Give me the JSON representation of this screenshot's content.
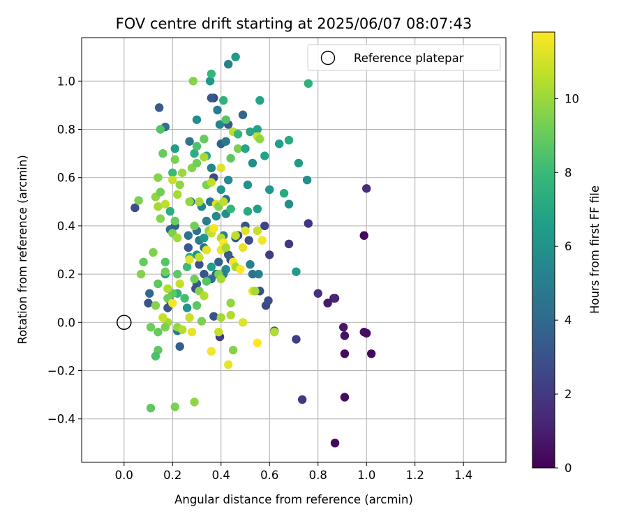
{
  "chart_data": {
    "type": "scatter",
    "title": "FOV centre drift starting at 2025/06/07 08:07:43",
    "xlabel": "Angular distance from reference (arcmin)",
    "ylabel": "Rotation from reference (arcmin)",
    "xlim": [
      -0.175,
      1.575
    ],
    "ylim": [
      -0.58,
      1.18
    ],
    "xticks": [
      0.0,
      0.2,
      0.4,
      0.6,
      0.8,
      1.0,
      1.2,
      1.4
    ],
    "xtick_labels": [
      "0.0",
      "0.2",
      "0.4",
      "0.6",
      "0.8",
      "1.0",
      "1.2",
      "1.4"
    ],
    "yticks": [
      -0.4,
      -0.2,
      0.0,
      0.2,
      0.4,
      0.6,
      0.8,
      1.0
    ],
    "ytick_labels": [
      "−0.4",
      "−0.2",
      "0.0",
      "0.2",
      "0.4",
      "0.6",
      "0.8",
      "1.0"
    ],
    "grid": true,
    "legend": {
      "placement": "upper right",
      "entries": [
        "Reference platepar"
      ]
    },
    "reference": {
      "x": 0.0,
      "y": 0.0,
      "label": "Reference platepar"
    },
    "colorbar": {
      "label": "Hours from first FF file",
      "colormap": "viridis",
      "range": [
        0,
        11.8
      ],
      "ticks": [
        0,
        2,
        4,
        6,
        8,
        10
      ],
      "tick_labels": [
        "0",
        "2",
        "4",
        "6",
        "8",
        "10"
      ],
      "stops": [
        "#440154",
        "#482878",
        "#3e4989",
        "#31688e",
        "#26828e",
        "#1f9e89",
        "#35b779",
        "#6ece58",
        "#b5de2b",
        "#fde725"
      ]
    },
    "points": [
      {
        "x": 0.99,
        "y": 0.36,
        "h": 0.2
      },
      {
        "x": 0.87,
        "y": -0.5,
        "h": 0.2
      },
      {
        "x": 0.91,
        "y": -0.31,
        "h": 0.4
      },
      {
        "x": 0.91,
        "y": -0.13,
        "h": 0.3
      },
      {
        "x": 1.02,
        "y": -0.13,
        "h": 0.3
      },
      {
        "x": 0.99,
        "y": -0.04,
        "h": 0.5
      },
      {
        "x": 1.0,
        "y": -0.045,
        "h": 0.4
      },
      {
        "x": 0.91,
        "y": -0.055,
        "h": 0.6
      },
      {
        "x": 0.905,
        "y": -0.02,
        "h": 0.7
      },
      {
        "x": 0.84,
        "y": 0.08,
        "h": 0.8
      },
      {
        "x": 0.865,
        "y": 0.1,
        "h": 1.0
      },
      {
        "x": 0.87,
        "y": 0.1,
        "h": 1.2
      },
      {
        "x": 1.0,
        "y": 0.555,
        "h": 1.5
      },
      {
        "x": 0.8,
        "y": 0.12,
        "h": 1.6
      },
      {
        "x": 0.735,
        "y": -0.32,
        "h": 2.0
      },
      {
        "x": 0.71,
        "y": -0.07,
        "h": 2.2
      },
      {
        "x": 0.76,
        "y": 0.41,
        "h": 1.8
      },
      {
        "x": 0.68,
        "y": 0.325,
        "h": 2.0
      },
      {
        "x": 0.6,
        "y": 0.28,
        "h": 2.2
      },
      {
        "x": 0.58,
        "y": 0.4,
        "h": 2.4
      },
      {
        "x": 0.585,
        "y": 0.07,
        "h": 2.6
      },
      {
        "x": 0.595,
        "y": 0.09,
        "h": 2.8
      },
      {
        "x": 0.62,
        "y": -0.035,
        "h": 3.2
      },
      {
        "x": 0.56,
        "y": 0.13,
        "h": 3.0
      },
      {
        "x": 0.515,
        "y": 0.34,
        "h": 2.8
      },
      {
        "x": 0.5,
        "y": 0.4,
        "h": 3.0
      },
      {
        "x": 0.47,
        "y": 0.36,
        "h": 2.6
      },
      {
        "x": 0.44,
        "y": 0.26,
        "h": 2.4
      },
      {
        "x": 0.46,
        "y": 0.35,
        "h": 3.2
      },
      {
        "x": 0.43,
        "y": 0.28,
        "h": 3.4
      },
      {
        "x": 0.39,
        "y": 0.25,
        "h": 3.6
      },
      {
        "x": 0.38,
        "y": 0.2,
        "h": 3.8
      },
      {
        "x": 0.395,
        "y": -0.06,
        "h": 2.2
      },
      {
        "x": 0.37,
        "y": 0.025,
        "h": 3.0
      },
      {
        "x": 0.36,
        "y": 0.18,
        "h": 4.2
      },
      {
        "x": 0.33,
        "y": 0.2,
        "h": 3.2
      },
      {
        "x": 0.31,
        "y": 0.24,
        "h": 3.0
      },
      {
        "x": 0.3,
        "y": 0.16,
        "h": 3.5
      },
      {
        "x": 0.295,
        "y": 0.14,
        "h": 2.8
      },
      {
        "x": 0.23,
        "y": -0.1,
        "h": 3.6
      },
      {
        "x": 0.22,
        "y": -0.035,
        "h": 4.6
      },
      {
        "x": 0.19,
        "y": 0.09,
        "h": 2.8
      },
      {
        "x": 0.18,
        "y": 0.06,
        "h": 3.2
      },
      {
        "x": 0.1,
        "y": 0.08,
        "h": 3.0
      },
      {
        "x": 0.105,
        "y": 0.12,
        "h": 4.0
      },
      {
        "x": 0.045,
        "y": 0.475,
        "h": 2.8
      },
      {
        "x": 0.19,
        "y": 0.385,
        "h": 4.0
      },
      {
        "x": 0.21,
        "y": 0.4,
        "h": 3.6
      },
      {
        "x": 0.265,
        "y": 0.31,
        "h": 3.4
      },
      {
        "x": 0.265,
        "y": 0.36,
        "h": 4.4
      },
      {
        "x": 0.275,
        "y": 0.5,
        "h": 3.6
      },
      {
        "x": 0.3,
        "y": 0.38,
        "h": 4.4
      },
      {
        "x": 0.31,
        "y": 0.34,
        "h": 4.8
      },
      {
        "x": 0.32,
        "y": 0.48,
        "h": 5.4
      },
      {
        "x": 0.33,
        "y": 0.31,
        "h": 4.2
      },
      {
        "x": 0.34,
        "y": 0.42,
        "h": 5.0
      },
      {
        "x": 0.355,
        "y": 0.5,
        "h": 4.6
      },
      {
        "x": 0.36,
        "y": 0.64,
        "h": 5.4
      },
      {
        "x": 0.37,
        "y": 0.6,
        "h": 2.6
      },
      {
        "x": 0.38,
        "y": 0.44,
        "h": 5.6
      },
      {
        "x": 0.4,
        "y": 0.55,
        "h": 6.2
      },
      {
        "x": 0.41,
        "y": 0.36,
        "h": 5.2
      },
      {
        "x": 0.42,
        "y": 0.45,
        "h": 5.8
      },
      {
        "x": 0.42,
        "y": 0.51,
        "h": 4.2
      },
      {
        "x": 0.43,
        "y": 0.59,
        "h": 5.6
      },
      {
        "x": 0.4,
        "y": 0.74,
        "h": 3.6
      },
      {
        "x": 0.42,
        "y": 0.75,
        "h": 4.8
      },
      {
        "x": 0.43,
        "y": 0.82,
        "h": 3.4
      },
      {
        "x": 0.395,
        "y": 0.82,
        "h": 5.4
      },
      {
        "x": 0.385,
        "y": 0.88,
        "h": 5.0
      },
      {
        "x": 0.37,
        "y": 0.93,
        "h": 2.6
      },
      {
        "x": 0.36,
        "y": 0.93,
        "h": 3.2
      },
      {
        "x": 0.355,
        "y": 1.0,
        "h": 6.2
      },
      {
        "x": 0.36,
        "y": 1.03,
        "h": 7.8
      },
      {
        "x": 0.43,
        "y": 1.07,
        "h": 5.2
      },
      {
        "x": 0.46,
        "y": 1.1,
        "h": 6.4
      },
      {
        "x": 0.49,
        "y": 0.86,
        "h": 3.8
      },
      {
        "x": 0.56,
        "y": 0.92,
        "h": 6.8
      },
      {
        "x": 0.76,
        "y": 0.99,
        "h": 7.6
      },
      {
        "x": 0.145,
        "y": 0.89,
        "h": 3.4
      },
      {
        "x": 0.17,
        "y": 0.81,
        "h": 4.4
      },
      {
        "x": 0.3,
        "y": 0.84,
        "h": 5.8
      },
      {
        "x": 0.41,
        "y": 0.92,
        "h": 7.6
      },
      {
        "x": 0.52,
        "y": 0.79,
        "h": 7.0
      },
      {
        "x": 0.55,
        "y": 0.8,
        "h": 6.8
      },
      {
        "x": 0.64,
        "y": 0.74,
        "h": 6.6
      },
      {
        "x": 0.68,
        "y": 0.755,
        "h": 7.2
      },
      {
        "x": 0.58,
        "y": 0.69,
        "h": 6.8
      },
      {
        "x": 0.53,
        "y": 0.66,
        "h": 5.8
      },
      {
        "x": 0.72,
        "y": 0.66,
        "h": 6.4
      },
      {
        "x": 0.755,
        "y": 0.59,
        "h": 5.8
      },
      {
        "x": 0.6,
        "y": 0.55,
        "h": 6.2
      },
      {
        "x": 0.66,
        "y": 0.535,
        "h": 7.2
      },
      {
        "x": 0.68,
        "y": 0.49,
        "h": 5.8
      },
      {
        "x": 0.55,
        "y": 0.47,
        "h": 6.6
      },
      {
        "x": 0.51,
        "y": 0.46,
        "h": 7.2
      },
      {
        "x": 0.51,
        "y": 0.57,
        "h": 6.0
      },
      {
        "x": 0.44,
        "y": 0.47,
        "h": 7.8
      },
      {
        "x": 0.71,
        "y": 0.21,
        "h": 6.4
      },
      {
        "x": 0.555,
        "y": 0.2,
        "h": 5.2
      },
      {
        "x": 0.53,
        "y": 0.2,
        "h": 4.6
      },
      {
        "x": 0.52,
        "y": 0.24,
        "h": 5.2
      },
      {
        "x": 0.42,
        "y": 0.22,
        "h": 5.6
      },
      {
        "x": 0.41,
        "y": 0.2,
        "h": 5.0
      },
      {
        "x": 0.36,
        "y": 0.23,
        "h": 6.6
      },
      {
        "x": 0.33,
        "y": 0.35,
        "h": 6.2
      },
      {
        "x": 0.3,
        "y": 0.28,
        "h": 6.0
      },
      {
        "x": 0.27,
        "y": 0.27,
        "h": 7.6
      },
      {
        "x": 0.26,
        "y": 0.23,
        "h": 8.0
      },
      {
        "x": 0.26,
        "y": 0.06,
        "h": 6.2
      },
      {
        "x": 0.25,
        "y": 0.1,
        "h": 8.2
      },
      {
        "x": 0.22,
        "y": 0.12,
        "h": 7.6
      },
      {
        "x": 0.2,
        "y": 0.12,
        "h": 8.8
      },
      {
        "x": 0.18,
        "y": 0.1,
        "h": 9.2
      },
      {
        "x": 0.17,
        "y": 0.2,
        "h": 6.8
      },
      {
        "x": 0.19,
        "y": 0.46,
        "h": 7.4
      },
      {
        "x": 0.2,
        "y": 0.62,
        "h": 8.0
      },
      {
        "x": 0.21,
        "y": 0.72,
        "h": 6.6
      },
      {
        "x": 0.27,
        "y": 0.75,
        "h": 4.6
      },
      {
        "x": 0.29,
        "y": 0.7,
        "h": 7.4
      },
      {
        "x": 0.3,
        "y": 0.73,
        "h": 8.4
      },
      {
        "x": 0.33,
        "y": 0.76,
        "h": 9.0
      },
      {
        "x": 0.34,
        "y": 0.69,
        "h": 7.0
      },
      {
        "x": 0.44,
        "y": 0.68,
        "h": 8.8
      },
      {
        "x": 0.47,
        "y": 0.72,
        "h": 9.4
      },
      {
        "x": 0.5,
        "y": 0.72,
        "h": 7.0
      },
      {
        "x": 0.45,
        "y": 0.79,
        "h": 10.6
      },
      {
        "x": 0.47,
        "y": 0.78,
        "h": 7.8
      },
      {
        "x": 0.55,
        "y": 0.77,
        "h": 10.8
      },
      {
        "x": 0.56,
        "y": 0.76,
        "h": 9.8
      },
      {
        "x": 0.4,
        "y": 0.64,
        "h": 11.2
      },
      {
        "x": 0.42,
        "y": 0.84,
        "h": 8.6
      },
      {
        "x": 0.285,
        "y": 1.0,
        "h": 9.6
      },
      {
        "x": 0.15,
        "y": 0.8,
        "h": 8.6
      },
      {
        "x": 0.16,
        "y": 0.7,
        "h": 9.0
      },
      {
        "x": 0.21,
        "y": 0.675,
        "h": 9.4
      },
      {
        "x": 0.24,
        "y": 0.62,
        "h": 10.0
      },
      {
        "x": 0.28,
        "y": 0.64,
        "h": 9.6
      },
      {
        "x": 0.3,
        "y": 0.66,
        "h": 9.2
      },
      {
        "x": 0.33,
        "y": 0.685,
        "h": 10.2
      },
      {
        "x": 0.2,
        "y": 0.59,
        "h": 10.8
      },
      {
        "x": 0.23,
        "y": 0.57,
        "h": 9.8
      },
      {
        "x": 0.14,
        "y": 0.6,
        "h": 9.6
      },
      {
        "x": 0.06,
        "y": 0.505,
        "h": 9.4
      },
      {
        "x": 0.13,
        "y": 0.52,
        "h": 9.8
      },
      {
        "x": 0.15,
        "y": 0.54,
        "h": 9.2
      },
      {
        "x": 0.14,
        "y": 0.48,
        "h": 10.2
      },
      {
        "x": 0.15,
        "y": 0.43,
        "h": 9.6
      },
      {
        "x": 0.17,
        "y": 0.49,
        "h": 10.6
      },
      {
        "x": 0.22,
        "y": 0.53,
        "h": 10.2
      },
      {
        "x": 0.27,
        "y": 0.5,
        "h": 9.8
      },
      {
        "x": 0.31,
        "y": 0.5,
        "h": 10.2
      },
      {
        "x": 0.34,
        "y": 0.57,
        "h": 9.4
      },
      {
        "x": 0.36,
        "y": 0.58,
        "h": 10.6
      },
      {
        "x": 0.38,
        "y": 0.49,
        "h": 11.2
      },
      {
        "x": 0.39,
        "y": 0.48,
        "h": 9.6
      },
      {
        "x": 0.41,
        "y": 0.5,
        "h": 10.6
      },
      {
        "x": 0.35,
        "y": 0.38,
        "h": 9.8
      },
      {
        "x": 0.36,
        "y": 0.37,
        "h": 10.8
      },
      {
        "x": 0.37,
        "y": 0.39,
        "h": 11.6
      },
      {
        "x": 0.4,
        "y": 0.35,
        "h": 10.4
      },
      {
        "x": 0.4,
        "y": 0.3,
        "h": 11.4
      },
      {
        "x": 0.41,
        "y": 0.33,
        "h": 11.8
      },
      {
        "x": 0.42,
        "y": 0.31,
        "h": 10.2
      },
      {
        "x": 0.34,
        "y": 0.3,
        "h": 11.2
      },
      {
        "x": 0.31,
        "y": 0.27,
        "h": 10.8
      },
      {
        "x": 0.29,
        "y": 0.4,
        "h": 9.2
      },
      {
        "x": 0.2,
        "y": 0.37,
        "h": 9.4
      },
      {
        "x": 0.21,
        "y": 0.42,
        "h": 9.0
      },
      {
        "x": 0.22,
        "y": 0.35,
        "h": 10.2
      },
      {
        "x": 0.12,
        "y": 0.29,
        "h": 9.4
      },
      {
        "x": 0.08,
        "y": 0.25,
        "h": 9.0
      },
      {
        "x": 0.07,
        "y": 0.2,
        "h": 9.6
      },
      {
        "x": 0.17,
        "y": 0.25,
        "h": 8.6
      },
      {
        "x": 0.17,
        "y": 0.21,
        "h": 9.2
      },
      {
        "x": 0.14,
        "y": 0.16,
        "h": 8.8
      },
      {
        "x": 0.18,
        "y": 0.14,
        "h": 10.4
      },
      {
        "x": 0.23,
        "y": 0.16,
        "h": 10.8
      },
      {
        "x": 0.22,
        "y": 0.2,
        "h": 8.8
      },
      {
        "x": 0.27,
        "y": 0.26,
        "h": 11.4
      },
      {
        "x": 0.29,
        "y": 0.18,
        "h": 9.2
      },
      {
        "x": 0.31,
        "y": 0.13,
        "h": 9.6
      },
      {
        "x": 0.33,
        "y": 0.11,
        "h": 10.4
      },
      {
        "x": 0.34,
        "y": 0.17,
        "h": 8.6
      },
      {
        "x": 0.39,
        "y": 0.2,
        "h": 9.4
      },
      {
        "x": 0.4,
        "y": 0.18,
        "h": 10.2
      },
      {
        "x": 0.45,
        "y": 0.25,
        "h": 11.6
      },
      {
        "x": 0.46,
        "y": 0.23,
        "h": 10.2
      },
      {
        "x": 0.48,
        "y": 0.22,
        "h": 11.8
      },
      {
        "x": 0.49,
        "y": 0.31,
        "h": 11.4
      },
      {
        "x": 0.46,
        "y": 0.36,
        "h": 10.6
      },
      {
        "x": 0.5,
        "y": 0.38,
        "h": 11.2
      },
      {
        "x": 0.55,
        "y": 0.38,
        "h": 10.8
      },
      {
        "x": 0.57,
        "y": 0.34,
        "h": 11.6
      },
      {
        "x": 0.53,
        "y": 0.13,
        "h": 11.4
      },
      {
        "x": 0.54,
        "y": 0.13,
        "h": 10.2
      },
      {
        "x": 0.44,
        "y": 0.08,
        "h": 9.8
      },
      {
        "x": 0.44,
        "y": 0.03,
        "h": 10.4
      },
      {
        "x": 0.49,
        "y": 0.0,
        "h": 11.2
      },
      {
        "x": 0.55,
        "y": -0.085,
        "h": 11.8
      },
      {
        "x": 0.62,
        "y": -0.04,
        "h": 10.4
      },
      {
        "x": 0.45,
        "y": -0.115,
        "h": 9.6
      },
      {
        "x": 0.43,
        "y": -0.175,
        "h": 11.4
      },
      {
        "x": 0.39,
        "y": -0.04,
        "h": 10.8
      },
      {
        "x": 0.36,
        "y": -0.12,
        "h": 11.6
      },
      {
        "x": 0.4,
        "y": 0.02,
        "h": 10.2
      },
      {
        "x": 0.32,
        "y": 0.005,
        "h": 9.4
      },
      {
        "x": 0.3,
        "y": 0.07,
        "h": 8.8
      },
      {
        "x": 0.28,
        "y": -0.04,
        "h": 11.4
      },
      {
        "x": 0.27,
        "y": 0.02,
        "h": 10.8
      },
      {
        "x": 0.22,
        "y": -0.02,
        "h": 9.8
      },
      {
        "x": 0.2,
        "y": 0.08,
        "h": 11.6
      },
      {
        "x": 0.18,
        "y": 0.0,
        "h": 10.2
      },
      {
        "x": 0.17,
        "y": -0.02,
        "h": 9.4
      },
      {
        "x": 0.16,
        "y": 0.02,
        "h": 10.8
      },
      {
        "x": 0.14,
        "y": -0.04,
        "h": 9.0
      },
      {
        "x": 0.11,
        "y": -0.02,
        "h": 9.2
      },
      {
        "x": 0.13,
        "y": 0.07,
        "h": 9.6
      },
      {
        "x": 0.14,
        "y": -0.115,
        "h": 8.8
      },
      {
        "x": 0.13,
        "y": -0.14,
        "h": 8.4
      },
      {
        "x": 0.11,
        "y": -0.355,
        "h": 8.8
      },
      {
        "x": 0.21,
        "y": -0.35,
        "h": 9.4
      },
      {
        "x": 0.29,
        "y": -0.33,
        "h": 9.8
      },
      {
        "x": 0.24,
        "y": -0.03,
        "h": 10.4
      }
    ]
  }
}
